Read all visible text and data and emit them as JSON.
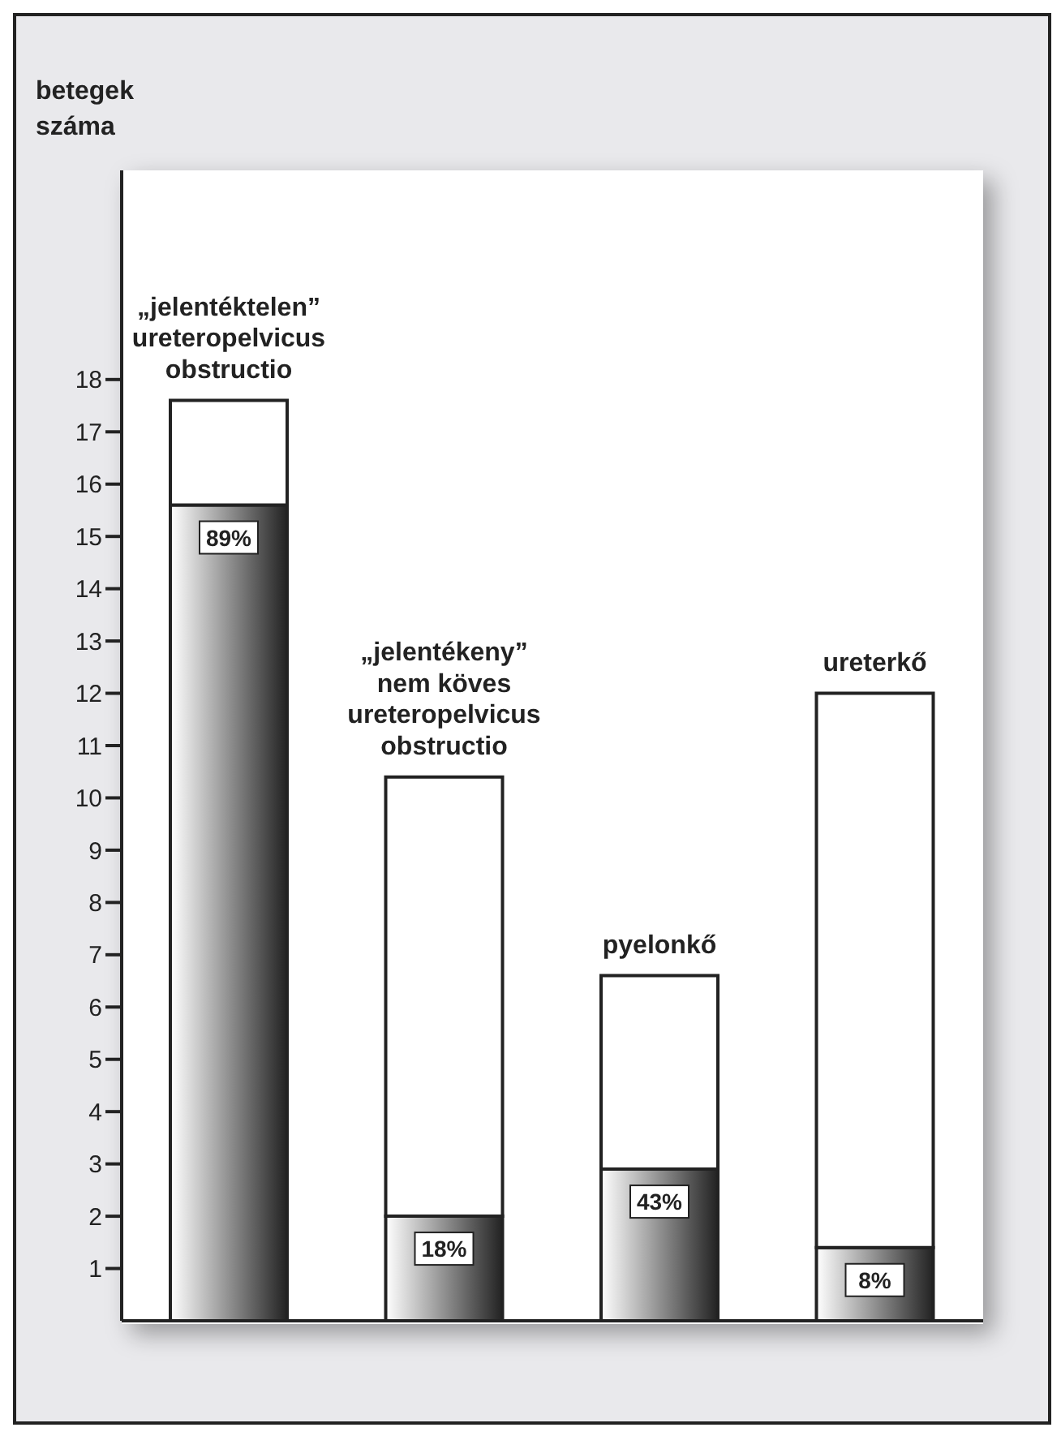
{
  "chart_data": {
    "type": "bar",
    "ylabel": "betegek\nszáma",
    "stacked": true,
    "categories": [
      "„jelentéktelen”\nureteropelvicus\nobstructio",
      "„jelentékeny”\nnem köves\nureteropelvicus\nobstructio",
      "pyelonkő",
      "ureterkő"
    ],
    "series": [
      {
        "color": "#222222",
        "values": [
          15.6,
          2.0,
          2.9,
          1.4
        ]
      },
      {
        "color": "#ffffff",
        "values": [
          2.0,
          8.4,
          3.7,
          10.6
        ]
      }
    ],
    "annotations": [
      {
        "text": "89%",
        "x": "„jelentéktelen”\nureteropelvicus\nobstructio",
        "y": 15.6
      },
      {
        "text": "18%",
        "x": "„jelentékeny”\nnem köves\nureteropelvicus\nobstructio",
        "y": 2.0
      },
      {
        "text": "43%",
        "x": "pyelonkő",
        "y": 2.9
      },
      {
        "text": "8%",
        "x": "ureterkő",
        "y": 1.4
      }
    ],
    "ylim": [
      0,
      22
    ],
    "yticks": [
      1,
      2,
      3,
      4,
      5,
      6,
      7,
      8,
      9,
      10,
      11,
      12,
      13,
      14,
      15,
      16,
      17,
      18
    ]
  }
}
